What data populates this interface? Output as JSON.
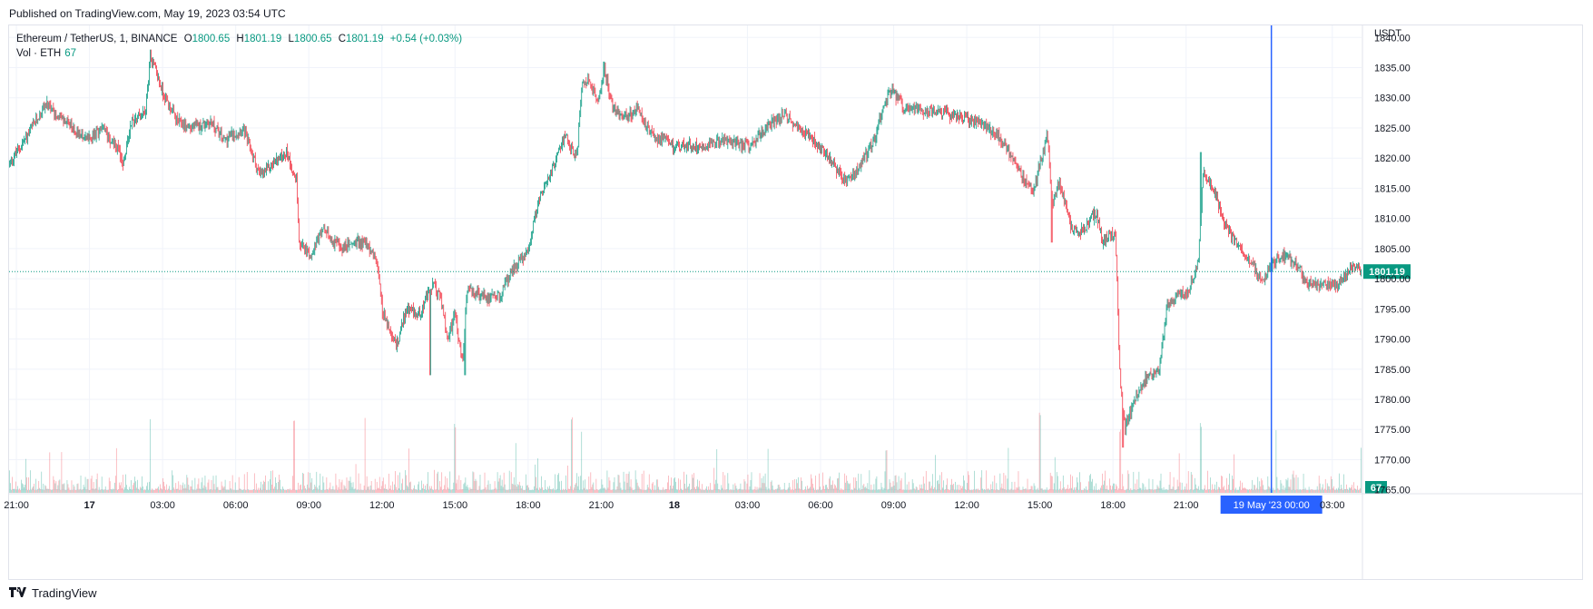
{
  "header": {
    "published": "Published on TradingView.com, May 19, 2023 03:54 UTC"
  },
  "legend": {
    "symbol": "Ethereum / TetherUS, 1, BINANCE",
    "open_label": "O",
    "open": "1800.65",
    "high_label": "H",
    "high": "1801.19",
    "low_label": "L",
    "low": "1800.65",
    "close_label": "C",
    "close": "1801.19",
    "change": "+0.54 (+0.03%)",
    "volume_label": "Vol · ETH",
    "volume": "67"
  },
  "footer": {
    "brand": "TradingView"
  },
  "colors": {
    "up": "#089981",
    "down": "#f23645",
    "crosshair": "#2962ff",
    "grid": "#f0f3fa"
  },
  "chart_data": {
    "type": "candlestick",
    "title": "Ethereum / TetherUS, 1, BINANCE",
    "currency": "USDT",
    "y_ticks": [
      1840,
      1835,
      1830,
      1825,
      1820,
      1815,
      1810,
      1805,
      1800,
      1795,
      1790,
      1785,
      1780,
      1775,
      1770,
      1765
    ],
    "y_tick_labels": [
      "1840.00",
      "1835.00",
      "1830.00",
      "1825.00",
      "1820.00",
      "1815.00",
      "1810.00",
      "1805.00",
      "1800.00",
      "1795.00",
      "1790.00",
      "1785.00",
      "1780.00",
      "1775.00",
      "1770.00",
      "1765.00"
    ],
    "ylim": [
      1764.5,
      1842
    ],
    "x_range_hours": [
      -3.3,
      52.2
    ],
    "x_ticks": [
      {
        "h": -3,
        "label": "21:00",
        "bold": false
      },
      {
        "h": 0,
        "label": "17",
        "bold": true
      },
      {
        "h": 3,
        "label": "03:00",
        "bold": false
      },
      {
        "h": 6,
        "label": "06:00",
        "bold": false
      },
      {
        "h": 9,
        "label": "09:00",
        "bold": false
      },
      {
        "h": 12,
        "label": "12:00",
        "bold": false
      },
      {
        "h": 15,
        "label": "15:00",
        "bold": false
      },
      {
        "h": 18,
        "label": "18:00",
        "bold": false
      },
      {
        "h": 21,
        "label": "21:00",
        "bold": false
      },
      {
        "h": 24,
        "label": "18",
        "bold": true
      },
      {
        "h": 27,
        "label": "03:00",
        "bold": false
      },
      {
        "h": 30,
        "label": "06:00",
        "bold": false
      },
      {
        "h": 33,
        "label": "09:00",
        "bold": false
      },
      {
        "h": 36,
        "label": "12:00",
        "bold": false
      },
      {
        "h": 39,
        "label": "15:00",
        "bold": false
      },
      {
        "h": 42,
        "label": "18:00",
        "bold": false
      },
      {
        "h": 45,
        "label": "21:00",
        "bold": false
      },
      {
        "h": 51,
        "label": "03:00",
        "bold": false
      }
    ],
    "price_path": [
      [
        -3.3,
        1819
      ],
      [
        -2.5,
        1824
      ],
      [
        -1.8,
        1829
      ],
      [
        -1.0,
        1826
      ],
      [
        0.0,
        1823
      ],
      [
        0.5,
        1825
      ],
      [
        1.1,
        1822
      ],
      [
        1.4,
        1819
      ],
      [
        1.7,
        1826
      ],
      [
        2.3,
        1828
      ],
      [
        2.5,
        1837
      ],
      [
        3.0,
        1831
      ],
      [
        3.6,
        1826
      ],
      [
        4.2,
        1825
      ],
      [
        5.0,
        1826
      ],
      [
        5.5,
        1823
      ],
      [
        6.3,
        1825
      ],
      [
        7.0,
        1817
      ],
      [
        7.5,
        1819
      ],
      [
        8.1,
        1821
      ],
      [
        8.5,
        1816
      ],
      [
        8.6,
        1806
      ],
      [
        9.0,
        1804
      ],
      [
        9.6,
        1808
      ],
      [
        10.3,
        1805
      ],
      [
        10.9,
        1806
      ],
      [
        11.3,
        1806
      ],
      [
        11.8,
        1803
      ],
      [
        12.0,
        1795
      ],
      [
        12.4,
        1790
      ],
      [
        12.6,
        1789
      ],
      [
        13.0,
        1795
      ],
      [
        13.5,
        1794
      ],
      [
        14.1,
        1799
      ],
      [
        14.4,
        1797
      ],
      [
        14.7,
        1790
      ],
      [
        15.0,
        1794
      ],
      [
        15.3,
        1786
      ],
      [
        15.5,
        1798
      ],
      [
        16.2,
        1797
      ],
      [
        16.8,
        1797
      ],
      [
        17.3,
        1801
      ],
      [
        18.0,
        1805
      ],
      [
        18.5,
        1814
      ],
      [
        19.0,
        1818
      ],
      [
        19.5,
        1824
      ],
      [
        20.0,
        1820
      ],
      [
        20.2,
        1832
      ],
      [
        20.5,
        1833
      ],
      [
        20.9,
        1829
      ],
      [
        21.1,
        1835
      ],
      [
        21.5,
        1828
      ],
      [
        22.0,
        1827
      ],
      [
        22.5,
        1828
      ],
      [
        23.0,
        1824
      ],
      [
        24.0,
        1822
      ],
      [
        25.0,
        1822
      ],
      [
        26.0,
        1823
      ],
      [
        27.0,
        1822
      ],
      [
        28.0,
        1826
      ],
      [
        28.5,
        1827
      ],
      [
        29.5,
        1824
      ],
      [
        30.2,
        1821
      ],
      [
        31.0,
        1816
      ],
      [
        31.5,
        1818
      ],
      [
        32.2,
        1823
      ],
      [
        32.6,
        1829
      ],
      [
        32.9,
        1831
      ],
      [
        33.5,
        1828
      ],
      [
        34.5,
        1828
      ],
      [
        35.5,
        1827
      ],
      [
        36.4,
        1826
      ],
      [
        37.2,
        1824
      ],
      [
        37.6,
        1822
      ],
      [
        38.3,
        1817
      ],
      [
        38.7,
        1814
      ],
      [
        39.3,
        1824
      ],
      [
        39.5,
        1812
      ],
      [
        39.8,
        1816
      ],
      [
        40.3,
        1808
      ],
      [
        40.8,
        1808
      ],
      [
        41.3,
        1811
      ],
      [
        41.6,
        1806
      ],
      [
        42.1,
        1808
      ],
      [
        42.3,
        1782
      ],
      [
        42.5,
        1775
      ],
      [
        42.8,
        1779
      ],
      [
        43.3,
        1783
      ],
      [
        43.9,
        1785
      ],
      [
        44.2,
        1795
      ],
      [
        44.6,
        1797
      ],
      [
        45.1,
        1798
      ],
      [
        45.5,
        1803
      ],
      [
        45.7,
        1818
      ],
      [
        46.2,
        1814
      ],
      [
        46.7,
        1808
      ],
      [
        47.3,
        1805
      ],
      [
        47.9,
        1801
      ],
      [
        48.2,
        1800
      ],
      [
        48.6,
        1803
      ],
      [
        49.1,
        1804
      ],
      [
        49.6,
        1802
      ],
      [
        50.0,
        1799
      ],
      [
        50.5,
        1799
      ],
      [
        51.2,
        1799
      ],
      [
        51.8,
        1802
      ],
      [
        52.2,
        1801.19
      ]
    ],
    "spikes": [
      [
        2.5,
        1838
      ],
      [
        21.1,
        1836
      ],
      [
        15.4,
        1784
      ],
      [
        39.5,
        1806
      ],
      [
        42.4,
        1772
      ],
      [
        45.6,
        1821
      ],
      [
        14.0,
        1784
      ]
    ],
    "volume_spikes": [
      [
        2.5,
        0.9
      ],
      [
        11.3,
        0.85
      ],
      [
        8.4,
        0.8
      ],
      [
        15.0,
        0.8
      ],
      [
        17.5,
        0.6
      ],
      [
        19.8,
        0.85
      ],
      [
        20.2,
        0.7
      ],
      [
        39.0,
        0.95
      ],
      [
        42.3,
        0.7
      ],
      [
        45.6,
        0.8
      ],
      [
        48.7,
        0.75
      ],
      [
        32.7,
        0.5
      ],
      [
        13.1,
        0.5
      ]
    ],
    "volume_max": 1.0,
    "last_price": 1801.19,
    "last_price_label": "1801.19",
    "last_volume_label": "67",
    "crosshair": {
      "h": 48.5,
      "label": "19 May '23   00:00"
    }
  }
}
